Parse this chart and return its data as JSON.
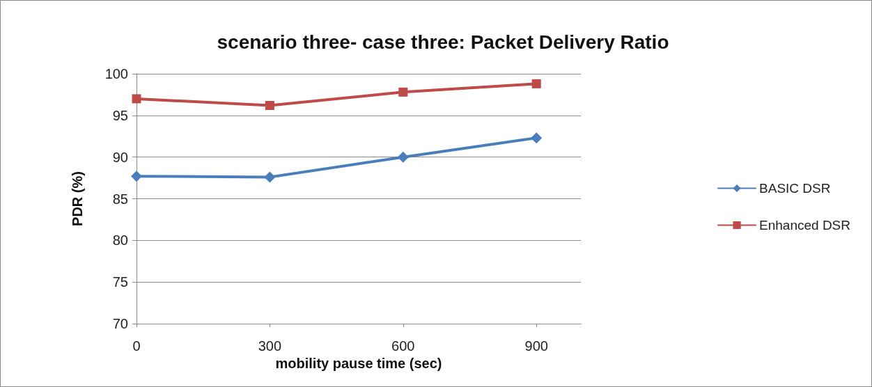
{
  "chart_data": {
    "type": "line",
    "title": "scenario three- case three: Packet Delivery Ratio",
    "xlabel": "mobility pause time (sec)",
    "ylabel": "PDR (%)",
    "x": [
      0,
      300,
      600,
      900
    ],
    "series": [
      {
        "name": "BASIC DSR",
        "color": "#4a7ebb",
        "marker": "diamond",
        "values": [
          87.7,
          87.6,
          90.0,
          92.3
        ]
      },
      {
        "name": "Enhanced DSR",
        "color": "#be4b48",
        "marker": "square",
        "values": [
          97.0,
          96.2,
          97.8,
          98.8
        ]
      }
    ],
    "xlim": [
      0,
      1000
    ],
    "xticks": [
      0,
      300,
      600,
      900
    ],
    "ylim": [
      70,
      100
    ],
    "yticks": [
      70,
      75,
      80,
      85,
      90,
      95,
      100
    ],
    "grid": "y",
    "legend": "right",
    "line_style": "solid"
  }
}
